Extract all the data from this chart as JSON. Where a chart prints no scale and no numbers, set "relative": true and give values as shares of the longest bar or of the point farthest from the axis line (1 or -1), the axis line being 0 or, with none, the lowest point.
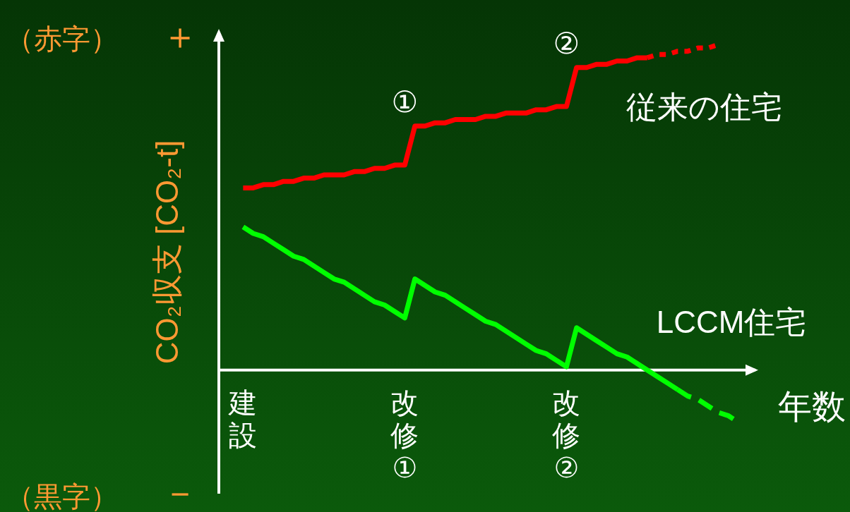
{
  "chart_data": {
    "type": "line",
    "relative": true,
    "ylabel": "CO₂収支 [CO₂-t]",
    "xlabel": "年数",
    "categories": [
      "建設",
      null,
      null,
      null,
      null,
      null,
      null,
      null,
      null,
      null,
      null,
      null,
      null,
      null,
      null,
      null,
      "改修①",
      null,
      null,
      null,
      null,
      null,
      null,
      null,
      null,
      null,
      null,
      null,
      null,
      null,
      null,
      null,
      "改修②",
      null,
      null,
      null,
      null,
      null,
      null,
      null,
      null,
      null,
      null,
      null,
      null,
      null,
      null,
      null,
      null,
      null
    ],
    "series": [
      {
        "name": "従来の住宅",
        "color": "#ff0000",
        "line_style": "solid",
        "values": [
          0.56,
          0.56,
          0.57,
          0.57,
          0.58,
          0.58,
          0.59,
          0.59,
          0.6,
          0.6,
          0.6,
          0.61,
          0.61,
          0.62,
          0.62,
          0.63,
          0.63,
          0.75,
          0.75,
          0.76,
          0.76,
          0.77,
          0.77,
          0.77,
          0.78,
          0.78,
          0.79,
          0.79,
          0.79,
          0.8,
          0.8,
          0.81,
          0.81,
          0.93,
          0.93,
          0.94,
          0.94,
          0.95,
          0.95,
          0.96,
          0.96,
          null,
          null,
          null,
          null,
          null,
          null,
          null,
          null,
          null
        ]
      },
      {
        "color": "#ff0000",
        "line_style": "dotted",
        "values": [
          null,
          null,
          null,
          null,
          null,
          null,
          null,
          null,
          null,
          null,
          null,
          null,
          null,
          null,
          null,
          null,
          null,
          null,
          null,
          null,
          null,
          null,
          null,
          null,
          null,
          null,
          null,
          null,
          null,
          null,
          null,
          null,
          null,
          null,
          null,
          null,
          null,
          null,
          null,
          null,
          0.96,
          0.97,
          0.97,
          0.98,
          0.98,
          0.99,
          0.99,
          1,
          null,
          null
        ]
      },
      {
        "name": "LCCM住宅",
        "color": "#00ff00",
        "line_style": "solid",
        "values": [
          0.44,
          0.42,
          0.41,
          0.39,
          0.37,
          0.35,
          0.34,
          0.32,
          0.3,
          0.28,
          0.27,
          0.25,
          0.23,
          0.21,
          0.2,
          0.18,
          0.16,
          0.28,
          0.26,
          0.24,
          0.23,
          0.21,
          0.19,
          0.17,
          0.15,
          0.14,
          0.12,
          0.1,
          0.08,
          0.06,
          0.05,
          0.03,
          0.01,
          0.13,
          0.11,
          0.09,
          0.07,
          0.05,
          0.04,
          0.02,
          0,
          -0.02,
          -0.04,
          -0.06,
          null,
          null,
          null,
          null,
          null,
          null
        ]
      },
      {
        "color": "#00ff00",
        "line_style": "dashed",
        "values": [
          null,
          null,
          null,
          null,
          null,
          null,
          null,
          null,
          null,
          null,
          null,
          null,
          null,
          null,
          null,
          null,
          null,
          null,
          null,
          null,
          null,
          null,
          null,
          null,
          null,
          null,
          null,
          null,
          null,
          null,
          null,
          null,
          null,
          null,
          null,
          null,
          null,
          null,
          null,
          null,
          null,
          null,
          null,
          -0.06,
          -0.08,
          -0.09,
          -0.11,
          -0.13,
          -0.14,
          -0.16
        ]
      }
    ],
    "annotations": [
      "（赤字）",
      "（黒字）",
      "＋",
      "－",
      {
        "text": "①",
        "x": "改修①",
        "y": 0.63
      },
      {
        "text": "②",
        "x": "改修②",
        "y": 0.81
      }
    ]
  }
}
